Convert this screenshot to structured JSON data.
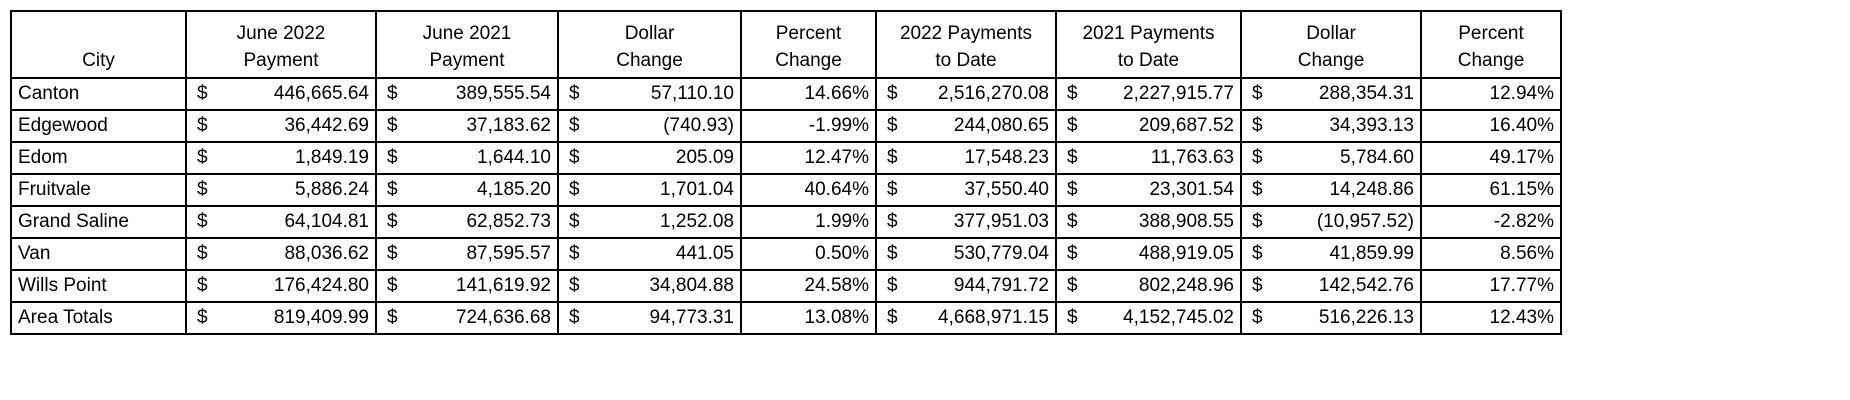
{
  "currency_symbol": "$",
  "table": {
    "headers": [
      [
        "City"
      ],
      [
        "June 2022",
        "Payment"
      ],
      [
        "June 2021",
        "Payment"
      ],
      [
        "Dollar",
        "Change"
      ],
      [
        "Percent",
        "Change"
      ],
      [
        "2022 Payments",
        "to Date"
      ],
      [
        "2021 Payments",
        "to Date"
      ],
      [
        "Dollar",
        "Change"
      ],
      [
        "Percent",
        "Change"
      ]
    ],
    "rows": [
      [
        "Canton",
        "446,665.64",
        "389,555.54",
        "57,110.10",
        "14.66%",
        "2,516,270.08",
        "2,227,915.77",
        "288,354.31",
        "12.94%"
      ],
      [
        "Edgewood",
        "36,442.69",
        "37,183.62",
        "(740.93)",
        "-1.99%",
        "244,080.65",
        "209,687.52",
        "34,393.13",
        "16.40%"
      ],
      [
        "Edom",
        "1,849.19",
        "1,644.10",
        "205.09",
        "12.47%",
        "17,548.23",
        "11,763.63",
        "5,784.60",
        "49.17%"
      ],
      [
        "Fruitvale",
        "5,886.24",
        "4,185.20",
        "1,701.04",
        "40.64%",
        "37,550.40",
        "23,301.54",
        "14,248.86",
        "61.15%"
      ],
      [
        "Grand Saline",
        "64,104.81",
        "62,852.73",
        "1,252.08",
        "1.99%",
        "377,951.03",
        "388,908.55",
        "(10,957.52)",
        "-2.82%"
      ],
      [
        "Van",
        "88,036.62",
        "87,595.57",
        "441.05",
        "0.50%",
        "530,779.04",
        "488,919.05",
        "41,859.99",
        "8.56%"
      ],
      [
        "Wills Point",
        "176,424.80",
        "141,619.92",
        "34,804.88",
        "24.58%",
        "944,791.72",
        "802,248.96",
        "142,542.76",
        "17.77%"
      ],
      [
        "Area Totals",
        "819,409.99",
        "724,636.68",
        "94,773.31",
        "13.08%",
        "4,668,971.15",
        "4,152,745.02",
        "516,226.13",
        "12.43%"
      ]
    ]
  }
}
